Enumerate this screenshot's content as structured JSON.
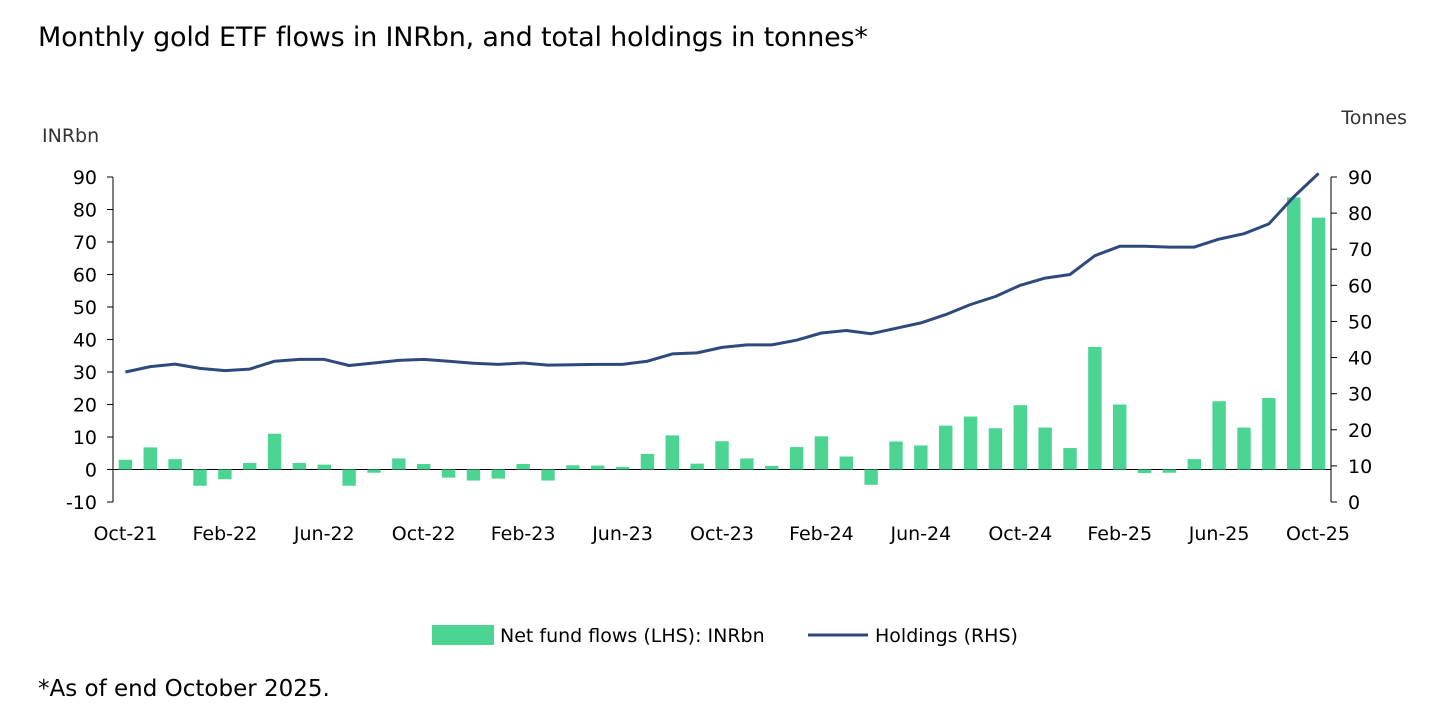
{
  "chart_data": {
    "type": "bar+line",
    "title": "Monthly gold ETF flows in INRbn, and total holdings in tonnes*",
    "footnote": "*As of end October 2025.",
    "left_axis": {
      "label": "INRbn",
      "min": -10,
      "max": 90,
      "ticks": [
        "-10",
        "0",
        "10",
        "20",
        "30",
        "40",
        "50",
        "60",
        "70",
        "80",
        "90"
      ]
    },
    "right_axis": {
      "label": "Tonnes",
      "min": 0,
      "max": 90,
      "ticks": [
        "0",
        "10",
        "20",
        "30",
        "40",
        "50",
        "60",
        "70",
        "80",
        "90"
      ]
    },
    "x_tick_labels": [
      "Oct-21",
      "Feb-22",
      "Jun-22",
      "Oct-22",
      "Feb-23",
      "Jun-23",
      "Oct-23",
      "Feb-24",
      "Jun-24",
      "Oct-24",
      "Feb-25",
      "Jun-25",
      "Oct-25"
    ],
    "categories": [
      "Oct-21",
      "Nov-21",
      "Dec-21",
      "Jan-22",
      "Feb-22",
      "Mar-22",
      "Apr-22",
      "May-22",
      "Jun-22",
      "Jul-22",
      "Aug-22",
      "Sep-22",
      "Oct-22",
      "Nov-22",
      "Dec-22",
      "Jan-23",
      "Feb-23",
      "Mar-23",
      "Apr-23",
      "May-23",
      "Jun-23",
      "Jul-23",
      "Aug-23",
      "Sep-23",
      "Oct-23",
      "Nov-23",
      "Dec-23",
      "Jan-24",
      "Feb-24",
      "Mar-24",
      "Apr-24",
      "May-24",
      "Jun-24",
      "Jul-24",
      "Aug-24",
      "Sep-24",
      "Oct-24",
      "Nov-24",
      "Dec-24",
      "Jan-25",
      "Feb-25",
      "Mar-25",
      "Apr-25",
      "May-25",
      "Jun-25",
      "Jul-25",
      "Aug-25",
      "Sep-25",
      "Oct-25"
    ],
    "series": [
      {
        "name": "Net fund flows (LHS): INRbn",
        "type": "bar",
        "color": "#4cd592",
        "values": [
          3.0,
          6.8,
          3.2,
          -5.0,
          -3.0,
          2.0,
          11.0,
          2.0,
          1.5,
          -5.0,
          -1.0,
          3.4,
          1.7,
          -2.5,
          -3.4,
          -2.8,
          1.7,
          -3.4,
          1.3,
          1.2,
          0.8,
          4.8,
          10.5,
          1.8,
          8.7,
          3.4,
          1.1,
          6.9,
          10.2,
          4.0,
          -4.7,
          8.6,
          7.4,
          13.5,
          16.3,
          12.7,
          19.8,
          12.9,
          6.6,
          37.7,
          20.0,
          -1.1,
          -1.0,
          3.2,
          21.0,
          12.9,
          22.0,
          83.7,
          77.5
        ]
      },
      {
        "name": "Holdings (RHS)",
        "type": "line",
        "color": "#2e4a7c",
        "values": [
          36.0,
          37.5,
          38.2,
          37.0,
          36.4,
          36.8,
          39.0,
          39.5,
          39.5,
          37.8,
          38.5,
          39.2,
          39.5,
          39.0,
          38.4,
          38.1,
          38.5,
          37.9,
          38.0,
          38.1,
          38.1,
          39.0,
          41.0,
          41.3,
          42.8,
          43.5,
          43.5,
          44.8,
          46.8,
          47.5,
          46.6,
          48.1,
          49.6,
          51.9,
          54.7,
          56.9,
          60.0,
          62.0,
          63.0,
          68.2,
          70.8,
          70.8,
          70.6,
          70.6,
          72.8,
          74.3,
          77.0,
          84.5,
          91.0
        ]
      }
    ],
    "legend_position": "bottom-center",
    "grid": false
  }
}
